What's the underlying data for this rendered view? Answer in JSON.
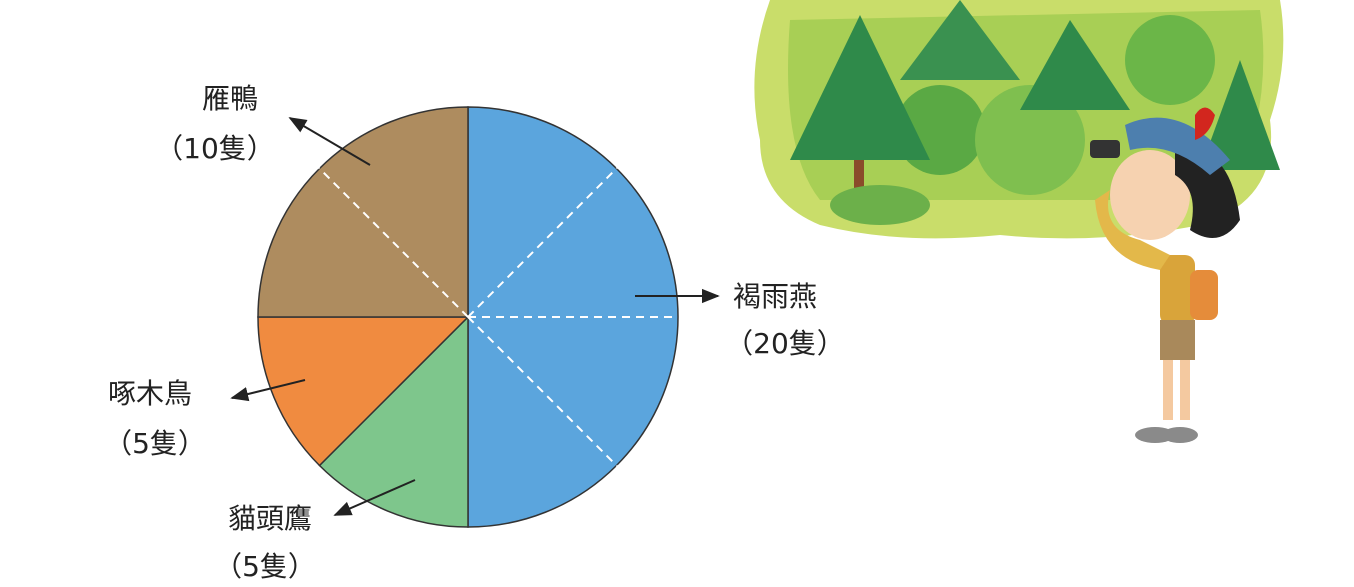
{
  "chart_data": {
    "type": "pie",
    "categories": [
      "褐雨燕",
      "貓頭鷹",
      "啄木鳥",
      "雁鴨"
    ],
    "values": [
      20,
      5,
      5,
      10
    ],
    "value_labels": [
      "（20隻）",
      "（5隻）",
      "（5隻）",
      "（10隻）"
    ],
    "colors": [
      "#5ba5dd",
      "#7ec68c",
      "#f08b40",
      "#ae8c5f"
    ]
  }
}
